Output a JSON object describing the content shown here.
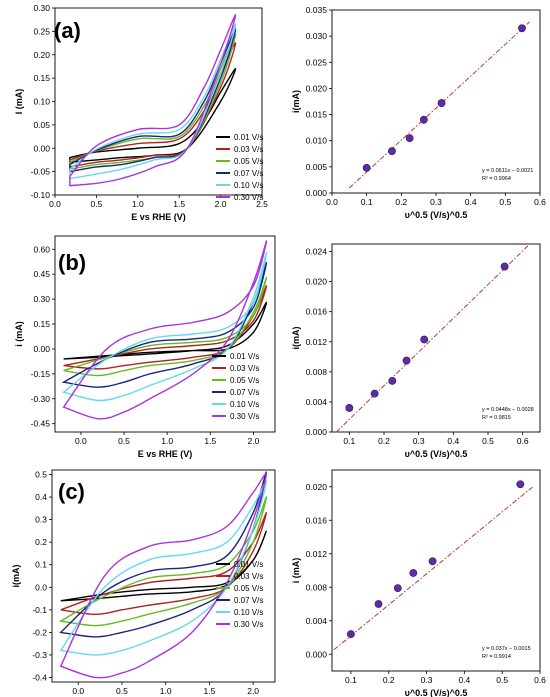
{
  "panel_labels": [
    "(a)",
    "(b)",
    "(c)"
  ],
  "colors": [
    "#000000",
    "#b22222",
    "#66bb22",
    "#1a237e",
    "#66d9ee",
    "#aa33dd"
  ],
  "fit_color": "#c0392b",
  "marker_color": "#5b2ea6",
  "chart_data": [
    {
      "id": "cv-a",
      "type": "line",
      "xlabel": "E vs RHE (V)",
      "ylabel": "I (mA)",
      "xlim": [
        0.0,
        2.5
      ],
      "ylim": [
        -0.1,
        0.3
      ],
      "xticks": [
        0.0,
        0.5,
        1.0,
        1.5,
        2.0,
        2.5
      ],
      "yticks": [
        -0.1,
        -0.05,
        0.0,
        0.05,
        0.1,
        0.15,
        0.2,
        0.25,
        0.3
      ],
      "ytick_labels": [
        "-0.10",
        "-0.05",
        "0.00",
        "0.05",
        "0.10",
        "0.15",
        "0.20",
        "0.25",
        "0.30"
      ],
      "xtick_labels": [
        "0.0",
        "0.5",
        "1.0",
        "1.5",
        "2.0",
        "2.5"
      ],
      "legend_position": "right-middle",
      "series": [
        {
          "name": "0.01 V/s",
          "x": [
            0.18,
            0.5,
            1.0,
            1.5,
            1.8,
            2.0,
            2.18,
            2.0,
            1.6,
            1.2,
            0.8,
            0.5,
            0.18
          ],
          "y": [
            -0.02,
            -0.008,
            0.0,
            0.01,
            0.06,
            0.12,
            0.17,
            0.1,
            0.0,
            -0.015,
            -0.02,
            -0.025,
            -0.03
          ]
        },
        {
          "name": "0.03 V/s",
          "x": [
            0.18,
            0.5,
            1.0,
            1.5,
            1.8,
            2.0,
            2.18,
            2.0,
            1.6,
            1.2,
            0.8,
            0.5,
            0.18
          ],
          "y": [
            -0.025,
            -0.006,
            0.01,
            0.02,
            0.08,
            0.16,
            0.225,
            0.13,
            0.0,
            -0.015,
            -0.025,
            -0.03,
            -0.04
          ]
        },
        {
          "name": "0.05 V/s",
          "x": [
            0.18,
            0.5,
            1.0,
            1.5,
            1.8,
            2.0,
            2.18,
            2.0,
            1.6,
            1.2,
            0.8,
            0.5,
            0.18
          ],
          "y": [
            -0.03,
            -0.005,
            0.02,
            0.025,
            0.09,
            0.17,
            0.245,
            0.14,
            0.0,
            -0.02,
            -0.03,
            -0.035,
            -0.045
          ]
        },
        {
          "name": "0.07 V/s",
          "x": [
            0.18,
            0.5,
            1.0,
            1.5,
            1.8,
            2.0,
            2.18,
            2.0,
            1.6,
            1.2,
            0.8,
            0.5,
            0.18
          ],
          "y": [
            -0.035,
            -0.004,
            0.025,
            0.03,
            0.1,
            0.18,
            0.255,
            0.15,
            0.0,
            -0.02,
            -0.035,
            -0.04,
            -0.05
          ]
        },
        {
          "name": "0.10 V/s",
          "x": [
            0.18,
            0.5,
            1.0,
            1.5,
            1.8,
            2.0,
            2.18,
            2.0,
            1.6,
            1.2,
            0.8,
            0.5,
            0.18
          ],
          "y": [
            -0.045,
            -0.002,
            0.03,
            0.04,
            0.11,
            0.19,
            0.265,
            0.16,
            0.0,
            -0.025,
            -0.045,
            -0.055,
            -0.065
          ]
        },
        {
          "name": "0.30 V/s",
          "x": [
            0.18,
            0.5,
            1.0,
            1.5,
            1.8,
            2.0,
            2.18,
            2.0,
            1.6,
            1.2,
            0.8,
            0.5,
            0.18
          ],
          "y": [
            -0.06,
            0.005,
            0.04,
            0.05,
            0.13,
            0.21,
            0.285,
            0.18,
            0.0,
            -0.04,
            -0.065,
            -0.075,
            -0.08
          ]
        }
      ]
    },
    {
      "id": "fit-a",
      "type": "scatter",
      "xlabel": "υ^0.5 (V/s)^0.5",
      "ylabel": "i(mA)",
      "xlim": [
        0.0,
        0.6
      ],
      "ylim": [
        0.0,
        0.035
      ],
      "xticks": [
        0.0,
        0.1,
        0.2,
        0.3,
        0.4,
        0.5,
        0.6
      ],
      "yticks": [
        0.0,
        0.005,
        0.01,
        0.015,
        0.02,
        0.025,
        0.03,
        0.035
      ],
      "xtick_labels": [
        "0.0",
        "0.1",
        "0.2",
        "0.3",
        "0.4",
        "0.5",
        "0.6"
      ],
      "ytick_labels": [
        "0.000",
        "0.005",
        "0.010",
        "0.015",
        "0.020",
        "0.025",
        "0.030",
        "0.035"
      ],
      "x": [
        0.1,
        0.173,
        0.224,
        0.265,
        0.316,
        0.548
      ],
      "y": [
        0.0048,
        0.008,
        0.0105,
        0.014,
        0.0172,
        0.0315
      ],
      "fit": {
        "slope": 0.0611,
        "intercept": -0.0021,
        "x_range": [
          0.05,
          0.57
        ]
      },
      "equation": "y = 0.0611x − 0.0021",
      "r2": "R² = 0.9964"
    },
    {
      "id": "cv-b",
      "type": "line",
      "xlabel": "E vs RHE (V)",
      "ylabel": "i (mA)",
      "xlim": [
        -0.3,
        2.25
      ],
      "ylim": [
        -0.5,
        0.68
      ],
      "xticks": [
        0.0,
        0.5,
        1.0,
        1.5,
        2.0
      ],
      "xtick_labels": [
        "0.0",
        "0.5",
        "1.0",
        "1.5",
        "2.0"
      ],
      "yticks": [
        -0.45,
        -0.3,
        -0.15,
        0.0,
        0.15,
        0.3,
        0.45,
        0.6
      ],
      "ytick_labels": [
        "-0.45",
        "-0.30",
        "-0.15",
        "0.00",
        "0.15",
        "0.30",
        "0.45",
        "0.60"
      ],
      "legend_position": "bottom-right",
      "series": [
        {
          "name": "0.01 V/s",
          "x": [
            -0.2,
            0.3,
            0.8,
            1.3,
            1.7,
            2.0,
            2.15,
            2.0,
            1.7,
            1.3,
            0.8,
            0.5,
            0.2,
            -0.2
          ],
          "y": [
            -0.06,
            -0.04,
            -0.02,
            -0.01,
            0.0,
            0.1,
            0.28,
            0.15,
            0.02,
            -0.01,
            -0.03,
            -0.04,
            -0.05,
            -0.06
          ]
        },
        {
          "name": "0.03 V/s",
          "x": [
            -0.2,
            0.3,
            0.8,
            1.3,
            1.7,
            2.0,
            2.15,
            2.0,
            1.7,
            1.3,
            0.8,
            0.5,
            0.2,
            -0.2
          ],
          "y": [
            -0.1,
            -0.05,
            0.0,
            0.02,
            0.05,
            0.17,
            0.38,
            0.2,
            0.0,
            -0.05,
            -0.08,
            -0.1,
            -0.12,
            -0.1
          ]
        },
        {
          "name": "0.05 V/s",
          "x": [
            -0.2,
            0.3,
            0.8,
            1.3,
            1.7,
            2.0,
            2.15,
            2.0,
            1.7,
            1.3,
            0.8,
            0.5,
            0.2,
            -0.2
          ],
          "y": [
            -0.13,
            -0.05,
            0.02,
            0.04,
            0.07,
            0.2,
            0.43,
            0.22,
            0.0,
            -0.07,
            -0.1,
            -0.13,
            -0.16,
            -0.13
          ]
        },
        {
          "name": "0.07 V/s",
          "x": [
            -0.2,
            0.3,
            0.8,
            1.3,
            1.7,
            2.0,
            2.15,
            2.0,
            1.7,
            1.3,
            0.8,
            0.5,
            0.2,
            -0.2
          ],
          "y": [
            -0.2,
            -0.06,
            0.04,
            0.06,
            0.1,
            0.25,
            0.52,
            0.28,
            0.0,
            -0.09,
            -0.15,
            -0.2,
            -0.23,
            -0.2
          ]
        },
        {
          "name": "0.10 V/s",
          "x": [
            -0.2,
            0.3,
            0.8,
            1.3,
            1.7,
            2.0,
            2.15,
            2.0,
            1.7,
            1.3,
            0.8,
            0.5,
            0.2,
            -0.2
          ],
          "y": [
            -0.26,
            -0.06,
            0.06,
            0.09,
            0.13,
            0.28,
            0.58,
            0.31,
            0.0,
            -0.12,
            -0.22,
            -0.28,
            -0.31,
            -0.26
          ]
        },
        {
          "name": "0.30 V/s",
          "x": [
            -0.2,
            0.3,
            0.8,
            1.3,
            1.7,
            2.0,
            2.15,
            2.0,
            1.7,
            1.3,
            0.8,
            0.5,
            0.2,
            -0.2
          ],
          "y": [
            -0.35,
            0.0,
            0.12,
            0.16,
            0.22,
            0.38,
            0.65,
            0.4,
            0.05,
            -0.15,
            -0.3,
            -0.38,
            -0.42,
            -0.35
          ]
        }
      ]
    },
    {
      "id": "fit-b",
      "type": "scatter",
      "xlabel": "υ^0.5 (V/s)^0.5",
      "ylabel": "i(mA)",
      "xlim": [
        0.05,
        0.65
      ],
      "ylim": [
        0.0,
        0.025
      ],
      "xticks": [
        0.1,
        0.2,
        0.3,
        0.4,
        0.5,
        0.6
      ],
      "xtick_labels": [
        "0.1",
        "0.2",
        "0.3",
        "0.4",
        "0.5",
        "0.6"
      ],
      "yticks": [
        0.0,
        0.004,
        0.008,
        0.012,
        0.016,
        0.02,
        0.024
      ],
      "ytick_labels": [
        "0.000",
        "0.004",
        "0.008",
        "0.012",
        "0.016",
        "0.020",
        "0.024"
      ],
      "x": [
        0.1,
        0.173,
        0.224,
        0.265,
        0.316,
        0.548
      ],
      "y": [
        0.0032,
        0.0051,
        0.0068,
        0.0095,
        0.0123,
        0.022
      ],
      "fit": {
        "slope": 0.0448,
        "intercept": -0.0028,
        "x_range": [
          0.062,
          0.62
        ]
      },
      "equation": "y = 0.0448x − 0.0028",
      "r2": "R² = 0.9815"
    },
    {
      "id": "cv-c",
      "type": "line",
      "xlabel": "E vs RHE (V)",
      "ylabel": "i(mA)",
      "xlim": [
        -0.3,
        2.25
      ],
      "ylim": [
        -0.42,
        0.52
      ],
      "xticks": [
        0.0,
        0.5,
        1.0,
        1.5,
        2.0
      ],
      "xtick_labels": [
        "0.0",
        "0.5",
        "1.0",
        "1.5",
        "2.0"
      ],
      "yticks": [
        -0.4,
        -0.3,
        -0.2,
        -0.1,
        0.0,
        0.1,
        0.2,
        0.3,
        0.4,
        0.5
      ],
      "ytick_labels": [
        "-0.4",
        "-0.3",
        "-0.2",
        "-0.1",
        "0.0",
        "0.1",
        "0.2",
        "0.3",
        "0.4",
        "0.5"
      ],
      "legend_position": "bottom-right",
      "series": [
        {
          "name": "0.01 V/s",
          "x": [
            -0.2,
            0.3,
            0.8,
            1.3,
            1.7,
            2.0,
            2.15,
            2.0,
            1.7,
            1.3,
            0.8,
            0.5,
            0.2,
            -0.2
          ],
          "y": [
            -0.06,
            -0.03,
            -0.01,
            0.0,
            0.02,
            0.12,
            0.25,
            0.12,
            0.01,
            -0.02,
            -0.03,
            -0.04,
            -0.05,
            -0.06
          ]
        },
        {
          "name": "0.03 V/s",
          "x": [
            -0.2,
            0.3,
            0.8,
            1.3,
            1.7,
            2.0,
            2.15,
            2.0,
            1.7,
            1.3,
            0.8,
            0.5,
            0.2,
            -0.2
          ],
          "y": [
            -0.1,
            -0.03,
            0.02,
            0.04,
            0.07,
            0.2,
            0.33,
            0.16,
            0.0,
            -0.05,
            -0.08,
            -0.1,
            -0.12,
            -0.1
          ]
        },
        {
          "name": "0.05 V/s",
          "x": [
            -0.2,
            0.3,
            0.8,
            1.3,
            1.7,
            2.0,
            2.15,
            2.0,
            1.7,
            1.3,
            0.8,
            0.5,
            0.2,
            -0.2
          ],
          "y": [
            -0.15,
            -0.04,
            0.04,
            0.06,
            0.1,
            0.25,
            0.4,
            0.2,
            0.0,
            -0.07,
            -0.12,
            -0.15,
            -0.17,
            -0.15
          ]
        },
        {
          "name": "0.07 V/s",
          "x": [
            -0.2,
            0.3,
            0.8,
            1.3,
            1.7,
            2.0,
            2.15,
            2.0,
            1.7,
            1.3,
            0.8,
            0.5,
            0.2,
            -0.2
          ],
          "y": [
            -0.2,
            -0.02,
            0.07,
            0.09,
            0.14,
            0.33,
            0.51,
            0.26,
            0.0,
            -0.1,
            -0.17,
            -0.2,
            -0.22,
            -0.2
          ]
        },
        {
          "name": "0.10 V/s",
          "x": [
            -0.2,
            0.3,
            0.8,
            1.3,
            1.7,
            2.0,
            2.15,
            2.0,
            1.7,
            1.3,
            0.8,
            0.5,
            0.2,
            -0.2
          ],
          "y": [
            -0.28,
            0.0,
            0.12,
            0.15,
            0.2,
            0.36,
            0.47,
            0.26,
            0.0,
            -0.15,
            -0.24,
            -0.28,
            -0.3,
            -0.28
          ]
        },
        {
          "name": "0.30 V/s",
          "x": [
            -0.2,
            0.3,
            0.8,
            1.3,
            1.7,
            2.0,
            2.15,
            2.0,
            1.7,
            1.3,
            0.8,
            0.5,
            0.2,
            -0.2
          ],
          "y": [
            -0.35,
            0.05,
            0.18,
            0.21,
            0.27,
            0.42,
            0.5,
            0.3,
            0.02,
            -0.2,
            -0.33,
            -0.38,
            -0.4,
            -0.35
          ]
        }
      ]
    },
    {
      "id": "fit-c",
      "type": "scatter",
      "xlabel": "υ^0.5 (V/s)^0.5",
      "ylabel": "i (mA)",
      "xlim": [
        0.05,
        0.6
      ],
      "ylim": [
        -0.002,
        0.022
      ],
      "xticks": [
        0.1,
        0.2,
        0.3,
        0.4,
        0.5,
        0.6
      ],
      "xtick_labels": [
        "0.1",
        "0.2",
        "0.3",
        "0.4",
        "0.5",
        "0.6"
      ],
      "yticks": [
        0.0,
        0.004,
        0.008,
        0.012,
        0.016,
        0.02
      ],
      "ytick_labels": [
        "0.000",
        "0.004",
        "0.008",
        "0.012",
        "0.016",
        "0.020"
      ],
      "x": [
        0.1,
        0.173,
        0.224,
        0.265,
        0.316,
        0.548
      ],
      "y": [
        0.0024,
        0.006,
        0.0079,
        0.0097,
        0.0111,
        0.0203
      ],
      "fit": {
        "slope": 0.037,
        "intercept": -0.0015,
        "x_range": [
          0.055,
          0.58
        ]
      },
      "equation": "y = 0.037x − 0.0015",
      "r2": "R² = 0.9914"
    }
  ]
}
